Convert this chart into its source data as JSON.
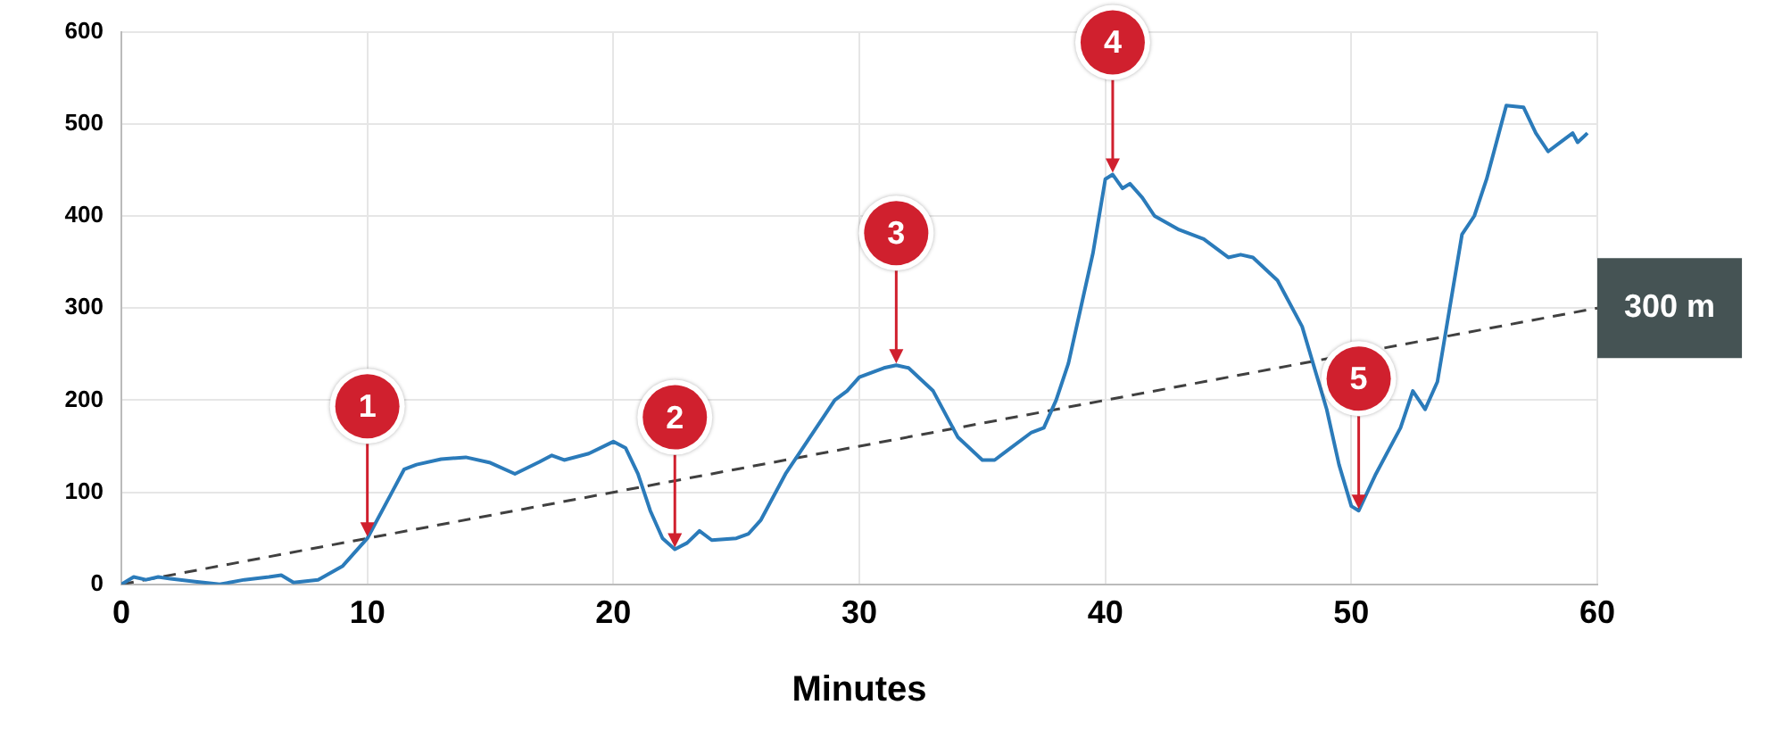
{
  "chart_data": {
    "type": "line",
    "xlabel": "Minutes",
    "xlim": [
      0,
      60
    ],
    "xticks": [
      0,
      10,
      20,
      30,
      40,
      50,
      60
    ],
    "ylim": [
      0,
      600
    ],
    "yticks": [
      0,
      100,
      200,
      300,
      400,
      500,
      600
    ],
    "grid": true,
    "legend": false,
    "marker": "none",
    "series": [
      {
        "color": "#2b7bba",
        "line_style": "solid",
        "x": [
          0,
          0.5,
          1,
          1.5,
          2,
          3,
          4,
          5,
          6,
          6.5,
          7,
          8,
          9,
          10,
          11,
          11.5,
          12,
          13,
          14,
          15,
          16,
          17,
          17.5,
          18,
          19,
          20,
          20.5,
          21,
          21.5,
          22,
          22.5,
          23,
          23.5,
          24,
          25,
          25.5,
          26,
          27,
          28,
          29,
          29.5,
          30,
          31,
          31.5,
          32,
          33,
          34,
          35,
          35.5,
          36,
          37,
          37.5,
          38,
          38.5,
          39,
          39.5,
          40,
          40.3,
          40.7,
          41,
          41.5,
          42,
          43,
          44,
          44.5,
          45,
          45.5,
          46,
          47,
          48,
          49,
          49.5,
          50,
          50.3,
          51,
          52,
          52.5,
          53,
          53.5,
          54,
          54.5,
          55,
          55.5,
          56,
          56.3,
          57,
          57.5,
          58,
          58.5,
          59,
          59.2,
          59.6
        ],
        "values": [
          0,
          8,
          5,
          8,
          6,
          3,
          0,
          5,
          8,
          10,
          2,
          5,
          20,
          50,
          100,
          125,
          130,
          136,
          138,
          132,
          120,
          133,
          140,
          135,
          142,
          155,
          148,
          120,
          80,
          50,
          38,
          45,
          58,
          48,
          50,
          55,
          70,
          120,
          160,
          200,
          210,
          225,
          235,
          238,
          235,
          210,
          160,
          135,
          135,
          145,
          165,
          170,
          200,
          240,
          300,
          360,
          440,
          445,
          430,
          435,
          420,
          400,
          385,
          375,
          365,
          355,
          358,
          355,
          330,
          280,
          190,
          130,
          85,
          80,
          120,
          170,
          210,
          190,
          220,
          300,
          380,
          400,
          440,
          490,
          520,
          518,
          490,
          470,
          480,
          490,
          480,
          490
        ]
      },
      {
        "color": "#404040",
        "line_style": "dashed",
        "x": [
          0,
          60
        ],
        "values": [
          0,
          300
        ]
      }
    ],
    "annotations": [
      {
        "text": "1",
        "x": 10,
        "y": 50
      },
      {
        "text": "2",
        "x": 22.5,
        "y": 38
      },
      {
        "text": "3",
        "x": 31.5,
        "y": 238
      },
      {
        "text": "4",
        "x": 40.3,
        "y": 445
      },
      {
        "text": "5",
        "x": 50.3,
        "y": 80
      },
      {
        "text": "300 m",
        "x": 60,
        "y": 300
      }
    ]
  }
}
